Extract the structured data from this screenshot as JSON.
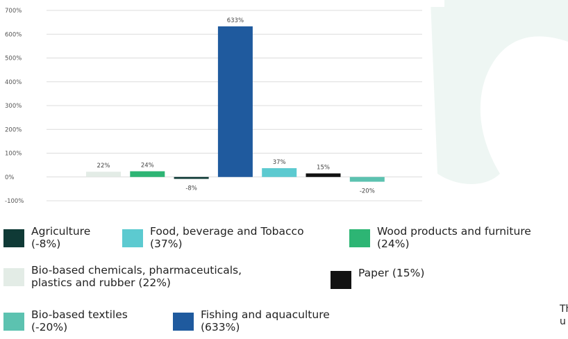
{
  "chart_data": {
    "type": "bar",
    "categories": [
      "Bio-based chemicals, pharmaceuticals, plastics and rubber",
      "Wood products and furniture",
      "Agriculture",
      "Fishing and aquaculture",
      "Food, beverage and Tobacco",
      "Paper",
      "Bio-based textiles"
    ],
    "values": [
      22,
      24,
      -8,
      633,
      37,
      15,
      -20
    ],
    "data_labels": [
      "22%",
      "24%",
      "-8%",
      "633%",
      "37%",
      "15%",
      "-20%"
    ],
    "colors": [
      "#e3ece6",
      "#2db574",
      "#0f3a36",
      "#1f5a9e",
      "#5ccad0",
      "#121212",
      "#5cc2b0"
    ],
    "ylim": [
      -100,
      700
    ],
    "yticks": [
      -100,
      0,
      100,
      200,
      300,
      400,
      500,
      600,
      700
    ],
    "ytick_labels": [
      "-100%",
      "0%",
      "100%",
      "200%",
      "300%",
      "400%",
      "500%",
      "600%",
      "700%"
    ],
    "grid": true,
    "legend_position": "bottom",
    "title": "",
    "xlabel": "",
    "ylabel": ""
  },
  "legend": [
    {
      "label": "Agriculture\n(-8%)",
      "color": "#0f3a36"
    },
    {
      "label": "Food, beverage and Tobacco\n(37%)",
      "color": "#5ccad0"
    },
    {
      "label": "Wood products and furniture\n(24%)",
      "color": "#2db574"
    },
    {
      "label": "Bio-based chemicals, pharmaceuticals,\nplastics and rubber (22%)",
      "color": "#e3ece6"
    },
    {
      "label": "Paper (15%)",
      "color": "#121212"
    },
    {
      "label": "Bio-based textiles\n(-20%)",
      "color": "#5cc2b0"
    },
    {
      "label": "Fishing and aquaculture\n(633%)",
      "color": "#1f5a9e"
    }
  ],
  "cutoff_text": "Th\nu",
  "colors": {
    "background_deco": "#eef6f3"
  }
}
